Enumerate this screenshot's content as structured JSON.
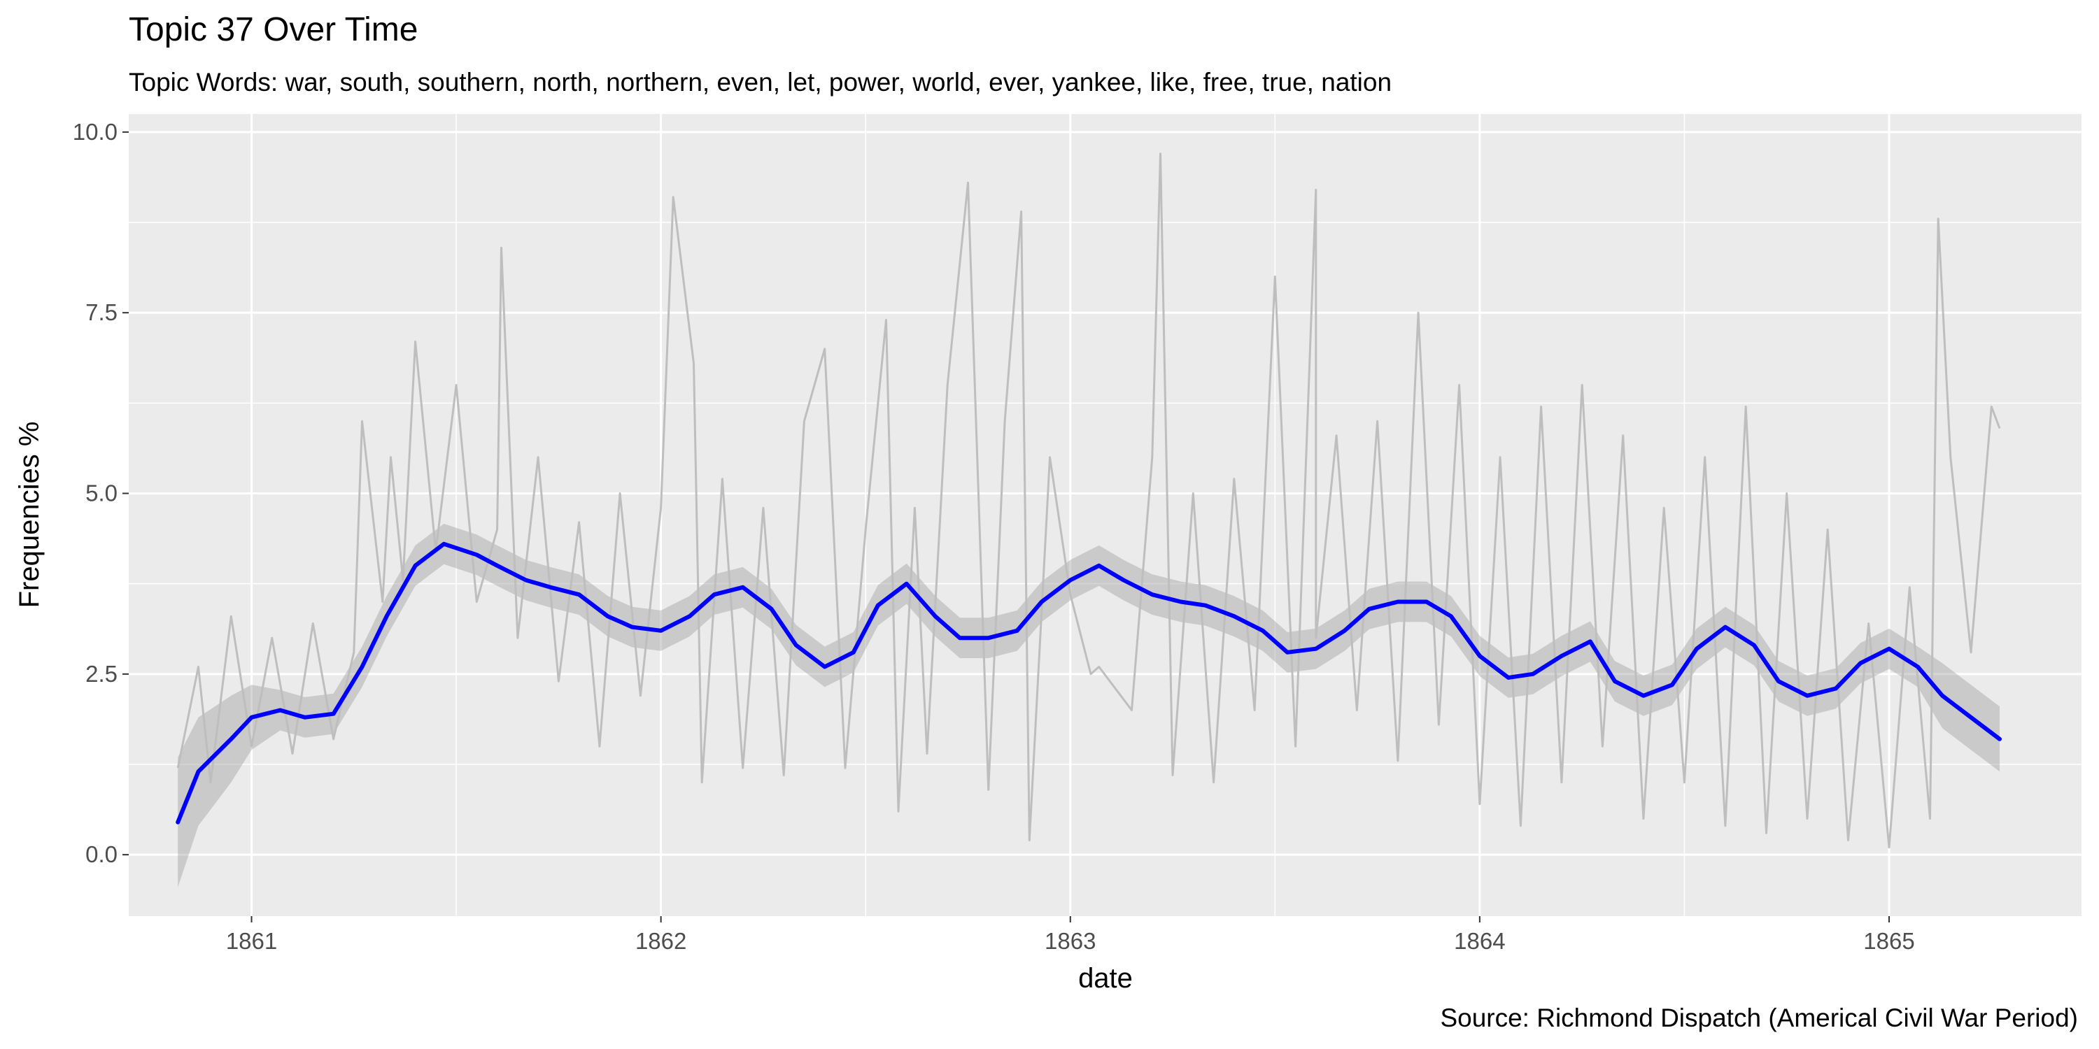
{
  "chart_data": {
    "type": "line",
    "title": "Topic 37 Over Time",
    "subtitle": "Topic Words: war, south, southern, north, northern, even, let, power, world, ever, yankee, like, free, true, nation",
    "xlabel": "date",
    "ylabel": "Frequencies %",
    "caption": "Source: Richmond Dispatch (Americal Civil War Period)",
    "xlim": [
      1860.7,
      1865.47
    ],
    "ylim": [
      -0.85,
      10.25
    ],
    "x_ticks": [
      1861,
      1862,
      1863,
      1864,
      1865
    ],
    "x_tick_labels": [
      "1861",
      "1862",
      "1863",
      "1864",
      "1865"
    ],
    "y_ticks": [
      0,
      2.5,
      5,
      7.5,
      10
    ],
    "y_tick_labels": [
      "0.0",
      "2.5",
      "5.0",
      "7.5",
      "10.0"
    ],
    "grid": true,
    "background": "#ebebeb",
    "series": [
      {
        "kind": "raw",
        "color": "#bebebe",
        "x": [
          1860.82,
          1860.87,
          1860.9,
          1860.95,
          1861.0,
          1861.05,
          1861.1,
          1861.15,
          1861.2,
          1861.25,
          1861.27,
          1861.32,
          1861.34,
          1861.37,
          1861.4,
          1861.45,
          1861.5,
          1861.55,
          1861.6,
          1861.61,
          1861.65,
          1861.7,
          1861.75,
          1861.8,
          1861.85,
          1861.9,
          1861.95,
          1862.0,
          1862.03,
          1862.08,
          1862.1,
          1862.15,
          1862.2,
          1862.25,
          1862.3,
          1862.35,
          1862.4,
          1862.45,
          1862.5,
          1862.55,
          1862.58,
          1862.62,
          1862.65,
          1862.7,
          1862.75,
          1862.8,
          1862.84,
          1862.88,
          1862.9,
          1862.95,
          1863.0,
          1863.05,
          1863.07,
          1863.15,
          1863.2,
          1863.22,
          1863.25,
          1863.3,
          1863.35,
          1863.4,
          1863.45,
          1863.5,
          1863.55,
          1863.6,
          1863.6,
          1863.65,
          1863.7,
          1863.75,
          1863.8,
          1863.85,
          1863.9,
          1863.95,
          1864.0,
          1864.05,
          1864.1,
          1864.15,
          1864.2,
          1864.25,
          1864.3,
          1864.35,
          1864.4,
          1864.45,
          1864.5,
          1864.55,
          1864.6,
          1864.65,
          1864.7,
          1864.75,
          1864.8,
          1864.85,
          1864.9,
          1864.95,
          1865.0,
          1865.05,
          1865.1,
          1865.12,
          1865.15,
          1865.2,
          1865.25,
          1865.27
        ],
        "y": [
          1.2,
          2.6,
          1.0,
          3.3,
          1.5,
          3.0,
          1.4,
          3.2,
          1.6,
          2.8,
          6.0,
          3.5,
          5.5,
          3.8,
          7.1,
          4.2,
          6.5,
          3.5,
          4.5,
          8.4,
          3.0,
          5.5,
          2.4,
          4.6,
          1.5,
          5.0,
          2.2,
          4.8,
          9.1,
          6.8,
          1.0,
          5.2,
          1.2,
          4.8,
          1.1,
          6.0,
          7.0,
          1.2,
          4.5,
          7.4,
          0.6,
          4.8,
          1.4,
          6.5,
          9.3,
          0.9,
          6.0,
          8.9,
          0.2,
          5.5,
          3.6,
          2.5,
          2.6,
          2.0,
          5.5,
          9.7,
          1.1,
          5.0,
          1.0,
          5.2,
          2.0,
          8.0,
          1.5,
          9.2,
          3.0,
          5.8,
          2.0,
          6.0,
          1.3,
          7.5,
          1.8,
          6.5,
          0.7,
          5.5,
          0.4,
          6.2,
          1.0,
          6.5,
          1.5,
          5.8,
          0.5,
          4.8,
          1.0,
          5.5,
          0.4,
          6.2,
          0.3,
          5.0,
          0.5,
          4.5,
          0.2,
          3.2,
          0.1,
          3.7,
          0.5,
          8.8,
          5.5,
          2.8,
          6.2,
          5.9
        ]
      },
      {
        "kind": "smooth",
        "color": "#0000ff",
        "x": [
          1860.82,
          1860.87,
          1860.95,
          1861.0,
          1861.07,
          1861.13,
          1861.2,
          1861.27,
          1861.33,
          1861.4,
          1861.47,
          1861.55,
          1861.6,
          1861.67,
          1861.73,
          1861.8,
          1861.87,
          1861.93,
          1862.0,
          1862.07,
          1862.13,
          1862.2,
          1862.27,
          1862.33,
          1862.4,
          1862.47,
          1862.53,
          1862.6,
          1862.67,
          1862.73,
          1862.8,
          1862.87,
          1862.93,
          1863.0,
          1863.07,
          1863.13,
          1863.2,
          1863.27,
          1863.33,
          1863.4,
          1863.47,
          1863.53,
          1863.6,
          1863.67,
          1863.73,
          1863.8,
          1863.87,
          1863.93,
          1864.0,
          1864.07,
          1864.13,
          1864.2,
          1864.27,
          1864.33,
          1864.4,
          1864.47,
          1864.53,
          1864.6,
          1864.67,
          1864.73,
          1864.8,
          1864.87,
          1864.93,
          1865.0,
          1865.07,
          1865.13,
          1865.2,
          1865.27
        ],
        "y": [
          0.45,
          1.15,
          1.6,
          1.9,
          2.0,
          1.9,
          1.95,
          2.6,
          3.3,
          4.0,
          4.3,
          4.15,
          4.0,
          3.8,
          3.7,
          3.6,
          3.3,
          3.15,
          3.1,
          3.3,
          3.6,
          3.7,
          3.4,
          2.9,
          2.6,
          2.8,
          3.45,
          3.75,
          3.3,
          3.0,
          3.0,
          3.1,
          3.5,
          3.8,
          4.0,
          3.8,
          3.6,
          3.5,
          3.45,
          3.3,
          3.1,
          2.8,
          2.85,
          3.1,
          3.4,
          3.5,
          3.5,
          3.3,
          2.75,
          2.45,
          2.5,
          2.75,
          2.95,
          2.4,
          2.2,
          2.35,
          2.85,
          3.15,
          2.9,
          2.4,
          2.2,
          2.3,
          2.65,
          2.85,
          2.6,
          2.2,
          1.9,
          1.6
        ]
      }
    ]
  }
}
